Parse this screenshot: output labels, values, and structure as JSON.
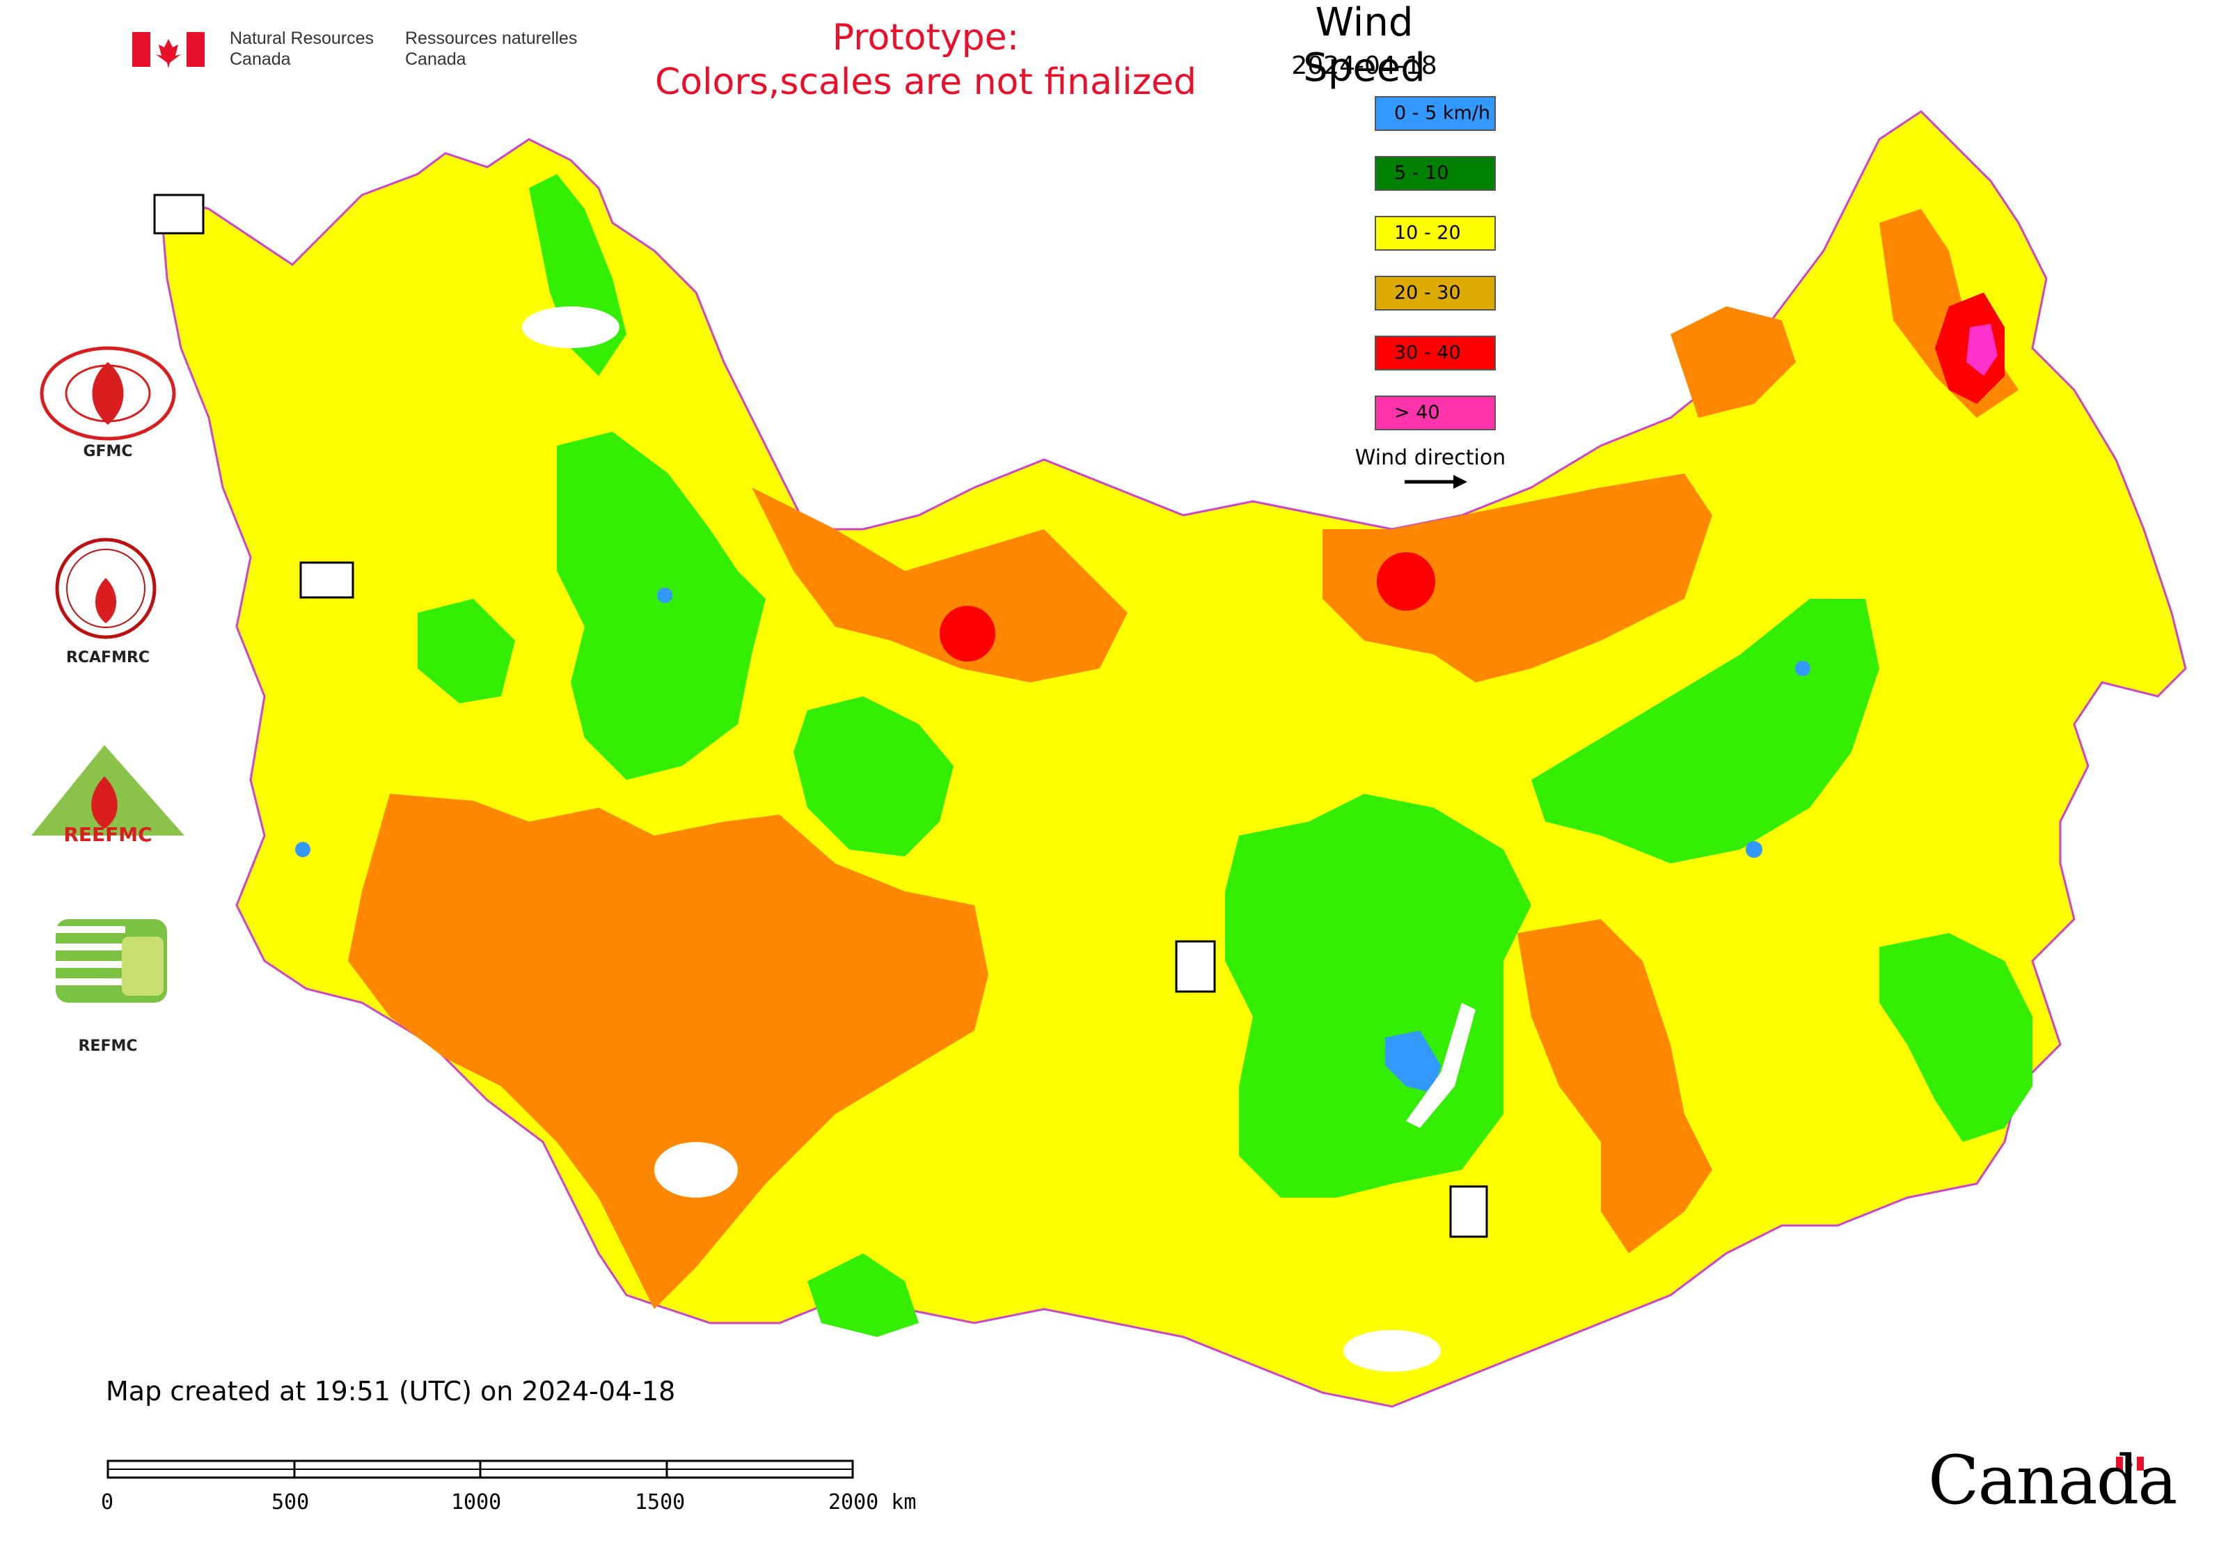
{
  "header": {
    "agency_en_line1": "Natural Resources",
    "agency_en_line2": "Canada",
    "agency_fr_line1": "Ressources naturelles",
    "agency_fr_line2": "Canada",
    "prototype_line1": "Prototype:",
    "prototype_line2": "Colors,scales are not finalized"
  },
  "legend": {
    "title": "Wind Speed",
    "date": "2024-04-18",
    "items": [
      {
        "label": "0 - 5 km/h",
        "color": "#3399ff"
      },
      {
        "label": "5 - 10",
        "color": "#008000"
      },
      {
        "label": "10 - 20",
        "color": "#ffff00"
      },
      {
        "label": "20 - 30",
        "color": "#ddaa00"
      },
      {
        "label": "30 - 40",
        "color": "#ff0000"
      },
      {
        "label": "> 40",
        "color": "#ff33aa"
      }
    ],
    "wind_direction_label": "Wind direction"
  },
  "organizations": [
    {
      "name": "GFMC"
    },
    {
      "name": "RCAFMRC"
    },
    {
      "name": "REEFMC"
    },
    {
      "name": "REFMC"
    }
  ],
  "footer": {
    "created": "Map created at 19:51 (UTC) on 2024-04-18",
    "scale_labels": [
      "0",
      "500",
      "1000",
      "1500",
      "2000 km"
    ],
    "wordmark": "Canada"
  },
  "map_colors": {
    "calm": "#3399ff",
    "light": "#33ee00",
    "moderate": "#ffff00",
    "fresh": "#ff8800",
    "strong": "#ff0000",
    "extreme": "#ff33cc",
    "water": "#ffffff",
    "border": "#cc44cc"
  }
}
